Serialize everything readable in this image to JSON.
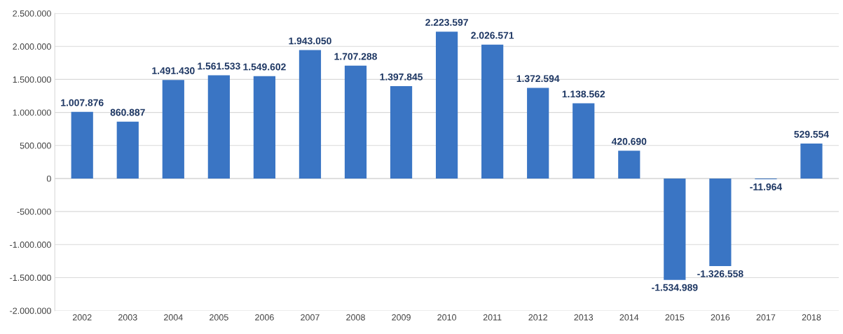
{
  "chart_data": {
    "type": "bar",
    "categories": [
      "2002",
      "2003",
      "2004",
      "2005",
      "2006",
      "2007",
      "2008",
      "2009",
      "2010",
      "2011",
      "2012",
      "2013",
      "2014",
      "2015",
      "2016",
      "2017",
      "2018"
    ],
    "values": [
      1007876,
      860887,
      1491430,
      1561533,
      1549602,
      1943050,
      1707288,
      1397845,
      2223597,
      2026571,
      1372594,
      1138562,
      420690,
      -1534989,
      -1326558,
      -11964,
      529554
    ],
    "value_labels": [
      "1.007.876",
      "860.887",
      "1.491.430",
      "1.561.533",
      "1.549.602",
      "1.943.050",
      "1.707.288",
      "1.397.845",
      "2.223.597",
      "2.026.571",
      "1.372.594",
      "1.138.562",
      "420.690",
      "-1.534.989",
      "-1.326.558",
      "-11.964",
      "529.554"
    ],
    "color": "#3a75c4",
    "ylim": [
      -2000000,
      2500000
    ],
    "yticks": [
      {
        "value": -2000000,
        "label": "-2.000.000"
      },
      {
        "value": -1500000,
        "label": "-1.500.000"
      },
      {
        "value": -1000000,
        "label": "-1.000.000"
      },
      {
        "value": -500000,
        "label": "-500.000"
      },
      {
        "value": 0,
        "label": "0"
      },
      {
        "value": 500000,
        "label": "500.000"
      },
      {
        "value": 1000000,
        "label": "1.000.000"
      },
      {
        "value": 1500000,
        "label": "1.500.000"
      },
      {
        "value": 2000000,
        "label": "2.000.000"
      },
      {
        "value": 2500000,
        "label": "2.500.000"
      }
    ],
    "grid": "y"
  }
}
